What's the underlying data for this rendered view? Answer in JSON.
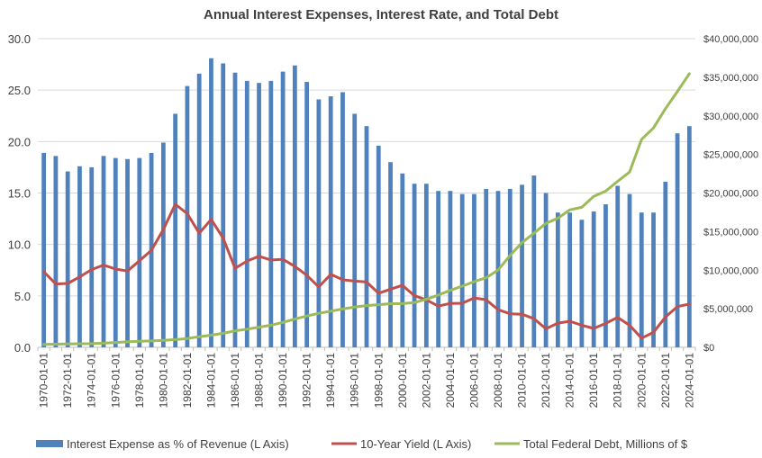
{
  "chart_data": {
    "type": "bar",
    "title": "Annual Interest Expenses, Interest Rate, and Total Debt",
    "x": [
      "1970-01-01",
      "1971-01-01",
      "1972-01-01",
      "1973-01-01",
      "1974-01-01",
      "1975-01-01",
      "1976-01-01",
      "1977-01-01",
      "1978-01-01",
      "1979-01-01",
      "1980-01-01",
      "1981-01-01",
      "1982-01-01",
      "1983-01-01",
      "1984-01-01",
      "1985-01-01",
      "1986-01-01",
      "1987-01-01",
      "1988-01-01",
      "1989-01-01",
      "1990-01-01",
      "1991-01-01",
      "1992-01-01",
      "1993-01-01",
      "1994-01-01",
      "1995-01-01",
      "1996-01-01",
      "1997-01-01",
      "1998-01-01",
      "1999-01-01",
      "2000-01-01",
      "2001-01-01",
      "2002-01-01",
      "2003-01-01",
      "2004-01-01",
      "2005-01-01",
      "2006-01-01",
      "2007-01-01",
      "2008-01-01",
      "2009-01-01",
      "2010-01-01",
      "2011-01-01",
      "2012-01-01",
      "2013-01-01",
      "2014-01-01",
      "2015-01-01",
      "2016-01-01",
      "2017-01-01",
      "2018-01-01",
      "2019-01-01",
      "2020-01-01",
      "2021-01-01",
      "2022-01-01",
      "2023-01-01",
      "2024-01-01"
    ],
    "x_tick_labels": [
      "1970-01-01",
      "1972-01-01",
      "1974-01-01",
      "1976-01-01",
      "1978-01-01",
      "1980-01-01",
      "1982-01-01",
      "1984-01-01",
      "1986-01-01",
      "1988-01-01",
      "1990-01-01",
      "1992-01-01",
      "1994-01-01",
      "1996-01-01",
      "1998-01-01",
      "2000-01-01",
      "2002-01-01",
      "2004-01-01",
      "2006-01-01",
      "2008-01-01",
      "2010-01-01",
      "2012-01-01",
      "2014-01-01",
      "2016-01-01",
      "2018-01-01",
      "2020-01-01",
      "2022-01-01",
      "2024-01-01"
    ],
    "y_left": {
      "ylim": [
        0,
        30
      ],
      "ticks": [
        "0.0",
        "5.0",
        "10.0",
        "15.0",
        "20.0",
        "25.0",
        "30.0"
      ]
    },
    "y_right": {
      "ylim": [
        0,
        40000000
      ],
      "ticks": [
        "$0",
        "$5,000,000",
        "$10,000,000",
        "$15,000,000",
        "$20,000,000",
        "$25,000,000",
        "$30,000,000",
        "$35,000,000",
        "$40,000,000"
      ]
    },
    "grid": true,
    "legend_position": "bottom",
    "series": [
      {
        "name": "Interest Expense as % of Revenue (L Axis)",
        "kind": "bar",
        "axis": "left",
        "color": "#4F81BD",
        "values": [
          18.9,
          18.6,
          17.1,
          17.6,
          17.5,
          18.6,
          18.4,
          18.3,
          18.4,
          18.9,
          19.9,
          22.7,
          25.4,
          26.6,
          28.1,
          27.6,
          26.7,
          25.9,
          25.7,
          25.9,
          26.8,
          27.4,
          25.8,
          24.1,
          24.4,
          24.8,
          22.7,
          21.5,
          19.6,
          18.0,
          16.9,
          15.9,
          15.9,
          15.2,
          15.2,
          14.9,
          14.9,
          15.4,
          15.2,
          15.4,
          15.8,
          16.7,
          15.0,
          13.1,
          13.1,
          12.4,
          13.2,
          13.9,
          15.7,
          14.9,
          13.1,
          13.1,
          16.1,
          20.8,
          21.5
        ]
      },
      {
        "name": "10-Year Yield (L Axis)",
        "kind": "line",
        "axis": "left",
        "color": "#C0504D",
        "values": [
          7.35,
          6.16,
          6.21,
          6.85,
          7.56,
          7.99,
          7.61,
          7.42,
          8.41,
          9.44,
          11.46,
          13.91,
          13.0,
          11.1,
          12.44,
          10.62,
          7.68,
          8.39,
          8.85,
          8.49,
          8.55,
          7.86,
          7.01,
          5.87,
          7.09,
          6.57,
          6.44,
          6.35,
          5.26,
          5.65,
          6.03,
          5.02,
          4.61,
          4.01,
          4.27,
          4.29,
          4.8,
          4.63,
          3.66,
          3.26,
          3.22,
          2.78,
          1.8,
          2.35,
          2.54,
          2.14,
          1.84,
          2.33,
          2.91,
          2.14,
          0.89,
          1.45,
          2.95,
          3.96,
          4.21
        ]
      },
      {
        "name": "Total Federal Debt, Millions of $",
        "kind": "line",
        "axis": "right",
        "color": "#9BBB59",
        "values": [
          380000,
          410000,
          430000,
          470000,
          480000,
          540000,
          630000,
          710000,
          780000,
          830000,
          910000,
          1000000,
          1140000,
          1380000,
          1570000,
          1820000,
          2130000,
          2350000,
          2600000,
          2870000,
          3230000,
          3660000,
          4060000,
          4410000,
          4690000,
          4970000,
          5220000,
          5410000,
          5530000,
          5660000,
          5670000,
          5810000,
          6230000,
          6780000,
          7380000,
          7930000,
          8510000,
          9010000,
          10020000,
          11910000,
          13560000,
          14790000,
          16070000,
          16740000,
          17820000,
          18150000,
          19570000,
          20240000,
          21520000,
          22720000,
          26950000,
          28430000,
          30930000,
          33170000,
          35460000
        ]
      }
    ]
  }
}
